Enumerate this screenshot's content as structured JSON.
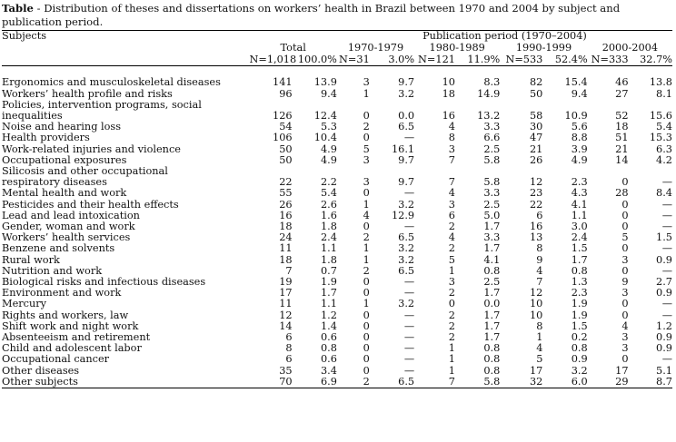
{
  "caption": {
    "label": "Table",
    "text": " - Distribution of theses and dissertations on workers’ health in Brazil between 1970 and 2004 by subject and publication period."
  },
  "header": {
    "subjects": "Subjects",
    "publication_period": "Publication period (1970–2004)",
    "groups": [
      {
        "label": "Total",
        "n": "N=1,018",
        "pct": "100.0%"
      },
      {
        "label": "1970-1979",
        "n": "N=31",
        "pct": "3.0%"
      },
      {
        "label": "1980-1989",
        "n": "N=121",
        "pct": "11.9%"
      },
      {
        "label": "1990-1999",
        "n": "N=533",
        "pct": "52.4%"
      },
      {
        "label": "2000-2004",
        "n": "N=333",
        "pct": "32.7%"
      }
    ]
  },
  "rows": [
    {
      "subject": [
        "Ergonomics and musculoskeletal diseases"
      ],
      "v": [
        "141",
        "13.9",
        "3",
        "9.7",
        "10",
        "8.3",
        "82",
        "15.4",
        "46",
        "13.8"
      ]
    },
    {
      "subject": [
        "Workers’ health profile and risks"
      ],
      "v": [
        "96",
        "9.4",
        "1",
        "3.2",
        "18",
        "14.9",
        "50",
        "9.4",
        "27",
        "8.1"
      ]
    },
    {
      "subject": [
        "Policies, intervention programs, social",
        "inequalities"
      ],
      "v": [
        "126",
        "12.4",
        "0",
        "0.0",
        "16",
        "13.2",
        "58",
        "10.9",
        "52",
        "15.6"
      ]
    },
    {
      "subject": [
        "Noise and hearing loss"
      ],
      "v": [
        "54",
        "5.3",
        "2",
        "6.5",
        "4",
        "3.3",
        "30",
        "5.6",
        "18",
        "5.4"
      ]
    },
    {
      "subject": [
        "Health providers"
      ],
      "v": [
        "106",
        "10.4",
        "0",
        "—",
        "8",
        "6.6",
        "47",
        "8.8",
        "51",
        "15.3"
      ]
    },
    {
      "subject": [
        "Work-related injuries and violence"
      ],
      "v": [
        "50",
        "4.9",
        "5",
        "16.1",
        "3",
        "2.5",
        "21",
        "3.9",
        "21",
        "6.3"
      ]
    },
    {
      "subject": [
        "Occupational exposures"
      ],
      "v": [
        "50",
        "4.9",
        "3",
        "9.7",
        "7",
        "5.8",
        "26",
        "4.9",
        "14",
        "4.2"
      ]
    },
    {
      "subject": [
        "Silicosis and other occupational",
        "respiratory diseases"
      ],
      "v": [
        "22",
        "2.2",
        "3",
        "9.7",
        "7",
        "5.8",
        "12",
        "2.3",
        "0",
        "—"
      ]
    },
    {
      "subject": [
        "Mental health and work"
      ],
      "v": [
        "55",
        "5.4",
        "0",
        "—",
        "4",
        "3.3",
        "23",
        "4.3",
        "28",
        "8.4"
      ]
    },
    {
      "subject": [
        "Pesticides and their health effects"
      ],
      "v": [
        "26",
        "2.6",
        "1",
        "3.2",
        "3",
        "2.5",
        "22",
        "4.1",
        "0",
        "—"
      ]
    },
    {
      "subject": [
        "Lead and lead intoxication"
      ],
      "v": [
        "16",
        "1.6",
        "4",
        "12.9",
        "6",
        "5.0",
        "6",
        "1.1",
        "0",
        "—"
      ]
    },
    {
      "subject": [
        "Gender, woman and work"
      ],
      "v": [
        "18",
        "1.8",
        "0",
        "—",
        "2",
        "1.7",
        "16",
        "3.0",
        "0",
        "—"
      ]
    },
    {
      "subject": [
        "Workers’ health services"
      ],
      "v": [
        "24",
        "2.4",
        "2",
        "6.5",
        "4",
        "3.3",
        "13",
        "2.4",
        "5",
        "1.5"
      ]
    },
    {
      "subject": [
        "Benzene and solvents"
      ],
      "v": [
        "11",
        "1.1",
        "1",
        "3.2",
        "2",
        "1.7",
        "8",
        "1.5",
        "0",
        "—"
      ]
    },
    {
      "subject": [
        "Rural work"
      ],
      "v": [
        "18",
        "1.8",
        "1",
        "3.2",
        "5",
        "4.1",
        "9",
        "1.7",
        "3",
        "0.9"
      ]
    },
    {
      "subject": [
        "Nutrition and work"
      ],
      "v": [
        "7",
        "0.7",
        "2",
        "6.5",
        "1",
        "0.8",
        "4",
        "0.8",
        "0",
        "—"
      ]
    },
    {
      "subject": [
        "Biological risks and infectious diseases"
      ],
      "v": [
        "19",
        "1.9",
        "0",
        "—",
        "3",
        "2.5",
        "7",
        "1.3",
        "9",
        "2.7"
      ]
    },
    {
      "subject": [
        "Environment and work"
      ],
      "v": [
        "17",
        "1.7",
        "0",
        "—",
        "2",
        "1.7",
        "12",
        "2.3",
        "3",
        "0.9"
      ]
    },
    {
      "subject": [
        "Mercury"
      ],
      "v": [
        "11",
        "1.1",
        "1",
        "3.2",
        "0",
        "0.0",
        "10",
        "1.9",
        "0",
        "—"
      ]
    },
    {
      "subject": [
        "Rights and workers, law"
      ],
      "v": [
        "12",
        "1.2",
        "0",
        "—",
        "2",
        "1.7",
        "10",
        "1.9",
        "0",
        "—"
      ]
    },
    {
      "subject": [
        "Shift work and night work"
      ],
      "v": [
        "14",
        "1.4",
        "0",
        "—",
        "2",
        "1.7",
        "8",
        "1.5",
        "4",
        "1.2"
      ]
    },
    {
      "subject": [
        "Absenteeism and retirement"
      ],
      "v": [
        "6",
        "0.6",
        "0",
        "—",
        "2",
        "1.7",
        "1",
        "0.2",
        "3",
        "0.9"
      ]
    },
    {
      "subject": [
        "Child and adolescent labor"
      ],
      "v": [
        "8",
        "0.8",
        "0",
        "—",
        "1",
        "0.8",
        "4",
        "0.8",
        "3",
        "0.9"
      ]
    },
    {
      "subject": [
        "Occupational cancer"
      ],
      "v": [
        "6",
        "0.6",
        "0",
        "—",
        "1",
        "0.8",
        "5",
        "0.9",
        "0",
        "—"
      ]
    },
    {
      "subject": [
        "Other diseases"
      ],
      "v": [
        "35",
        "3.4",
        "0",
        "—",
        "1",
        "0.8",
        "17",
        "3.2",
        "17",
        "5.1"
      ]
    },
    {
      "subject": [
        "Other subjects"
      ],
      "v": [
        "70",
        "6.9",
        "2",
        "6.5",
        "7",
        "5.8",
        "32",
        "6.0",
        "29",
        "8.7"
      ]
    }
  ]
}
